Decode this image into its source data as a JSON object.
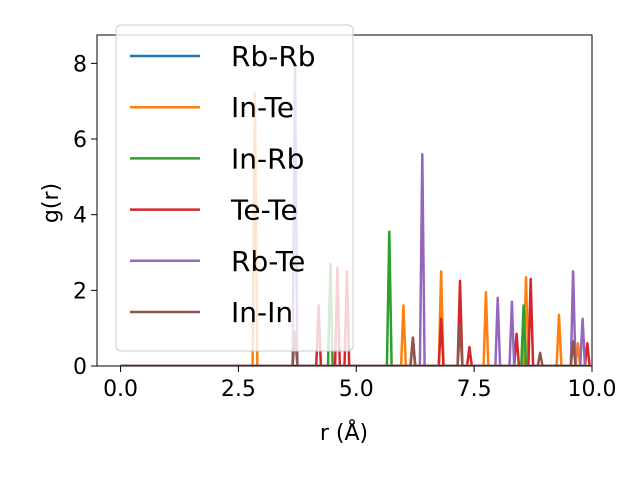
{
  "chart_data": {
    "type": "line",
    "xlabel": "r (Å)",
    "ylabel": "g(r)",
    "xlim": [
      -0.5,
      10.0
    ],
    "ylim": [
      0,
      8.75
    ],
    "xticks": [
      "0.0",
      "2.5",
      "5.0",
      "7.5",
      "10.0"
    ],
    "yticks": [
      "0",
      "2",
      "4",
      "6",
      "8"
    ],
    "legend_position": "upper-left",
    "grid": false,
    "series": [
      {
        "name": "Rb-Rb",
        "color": "#1f77b4",
        "peaks": []
      },
      {
        "name": "In-Te",
        "color": "#ff7f0e",
        "peaks": [
          [
            2.85,
            7.2
          ],
          [
            6.0,
            1.6
          ],
          [
            6.8,
            2.5
          ],
          [
            7.75,
            1.95
          ],
          [
            8.6,
            2.35
          ],
          [
            9.3,
            1.35
          ],
          [
            9.7,
            0.6
          ]
        ]
      },
      {
        "name": "In-Rb",
        "color": "#2ca02c",
        "peaks": [
          [
            4.45,
            2.7
          ],
          [
            5.7,
            3.55
          ],
          [
            8.55,
            1.6
          ]
        ]
      },
      {
        "name": "Te-Te",
        "color": "#d62728",
        "peaks": [
          [
            4.2,
            1.6
          ],
          [
            4.6,
            2.6
          ],
          [
            4.8,
            2.5
          ],
          [
            6.2,
            0.75
          ],
          [
            6.8,
            1.25
          ],
          [
            7.2,
            2.25
          ],
          [
            7.4,
            0.5
          ],
          [
            8.4,
            0.85
          ],
          [
            8.7,
            2.3
          ],
          [
            9.9,
            0.6
          ]
        ]
      },
      {
        "name": "Rb-Te",
        "color": "#9467bd",
        "peaks": [
          [
            3.7,
            8.0
          ],
          [
            6.4,
            5.6
          ],
          [
            8.0,
            1.8
          ],
          [
            8.3,
            1.7
          ],
          [
            9.6,
            2.5
          ],
          [
            9.8,
            1.25
          ]
        ]
      },
      {
        "name": "In-In",
        "color": "#8c564b",
        "peaks": [
          [
            3.7,
            0.9
          ],
          [
            6.2,
            0.75
          ],
          [
            7.2,
            1.1
          ],
          [
            8.9,
            0.35
          ],
          [
            9.6,
            0.65
          ]
        ]
      }
    ]
  }
}
